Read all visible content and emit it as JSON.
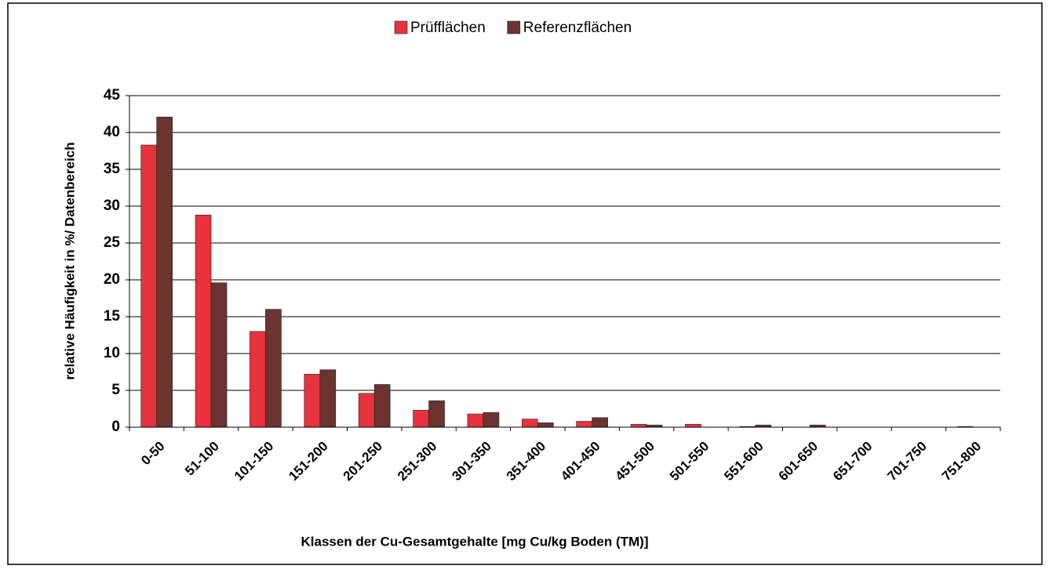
{
  "chart_data": {
    "type": "bar",
    "x_label": "Klassen der Cu-Gesamtgehalte [mg Cu/kg Boden (TM)]",
    "y_label": "relative Häufigkeit in %/ Datenbereich",
    "categories": [
      "0-50",
      "51-100",
      "101-150",
      "151-200",
      "201-250",
      "251-300",
      "301-350",
      "351-400",
      "401-450",
      "451-500",
      "501-550",
      "551-600",
      "601-650",
      "651-700",
      "701-750",
      "751-800"
    ],
    "series": [
      {
        "name": "Prüfflächen",
        "color": "#e8323c",
        "values": [
          38.3,
          28.8,
          13.0,
          7.2,
          4.6,
          2.3,
          1.8,
          1.1,
          0.8,
          0.4,
          0.4,
          0.1,
          0,
          0,
          0,
          0.1
        ]
      },
      {
        "name": "Referenzflächen",
        "color": "#6b3430",
        "values": [
          42.1,
          19.6,
          16.0,
          7.8,
          5.8,
          3.6,
          2.0,
          0.6,
          1.3,
          0.3,
          0,
          0.3,
          0.3,
          0,
          0,
          0
        ]
      }
    ],
    "ylim": [
      0,
      45
    ],
    "yticks": [
      0,
      5,
      10,
      15,
      20,
      25,
      30,
      35,
      40,
      45
    ],
    "grid": true,
    "legend": "top"
  }
}
